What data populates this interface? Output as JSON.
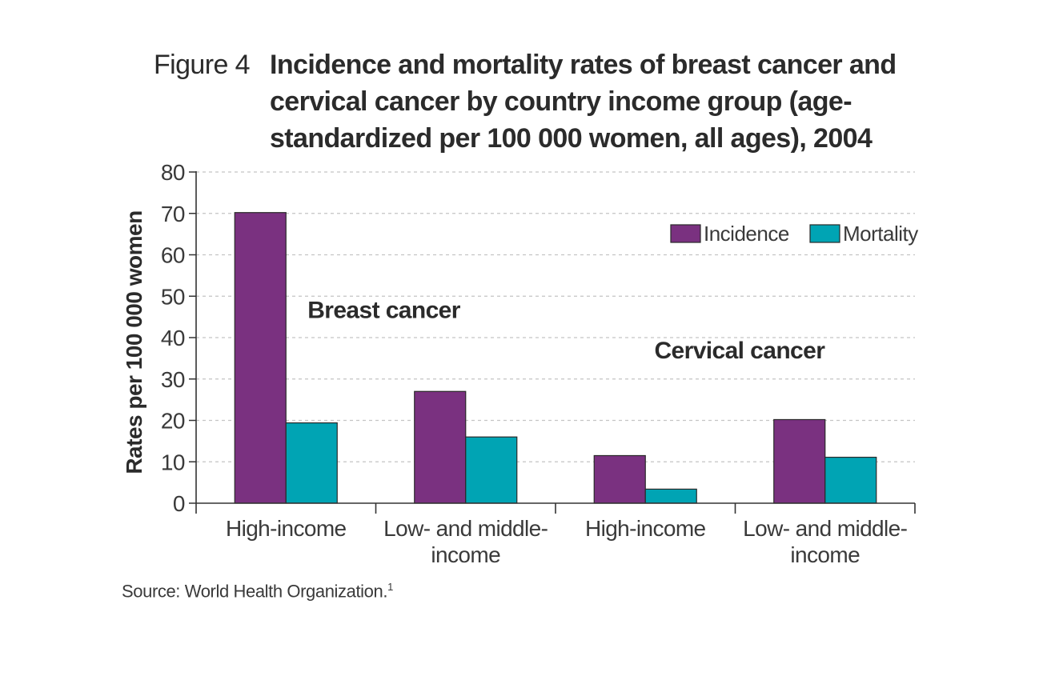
{
  "figure": {
    "label": "Figure 4",
    "title": "Incidence and mortality rates of breast cancer and\ncervical cancer by country income group (age-\nstandardized per 100 000 women, all ages), 2004"
  },
  "source": {
    "text": "Source: World Health Organization.",
    "superscript": "1"
  },
  "chart_data": {
    "type": "bar",
    "title": "Incidence and mortality rates of breast cancer and cervical cancer by country income group (age-standardized per 100 000 women, all ages), 2004",
    "xlabel": "",
    "ylabel": "Rates per 100 000 women",
    "ylim": [
      0,
      80
    ],
    "yticks": [
      0,
      10,
      20,
      30,
      40,
      50,
      60,
      70,
      80
    ],
    "grid": "horizontal dashed",
    "legend_position": "top-right",
    "categories": [
      "High-income",
      "Low- and middle-\nincome",
      "High-income",
      "Low- and middle-\nincome"
    ],
    "groups": [
      {
        "label": "Breast cancer",
        "categories": [
          0,
          1
        ]
      },
      {
        "label": "Cervical cancer",
        "categories": [
          2,
          3
        ]
      }
    ],
    "series": [
      {
        "name": "Incidence",
        "color": "#7a3180",
        "values": [
          70.2,
          27.0,
          11.5,
          20.2
        ]
      },
      {
        "name": "Mortality",
        "color": "#00a4b4",
        "values": [
          19.4,
          16.0,
          3.4,
          11.1
        ]
      }
    ]
  }
}
